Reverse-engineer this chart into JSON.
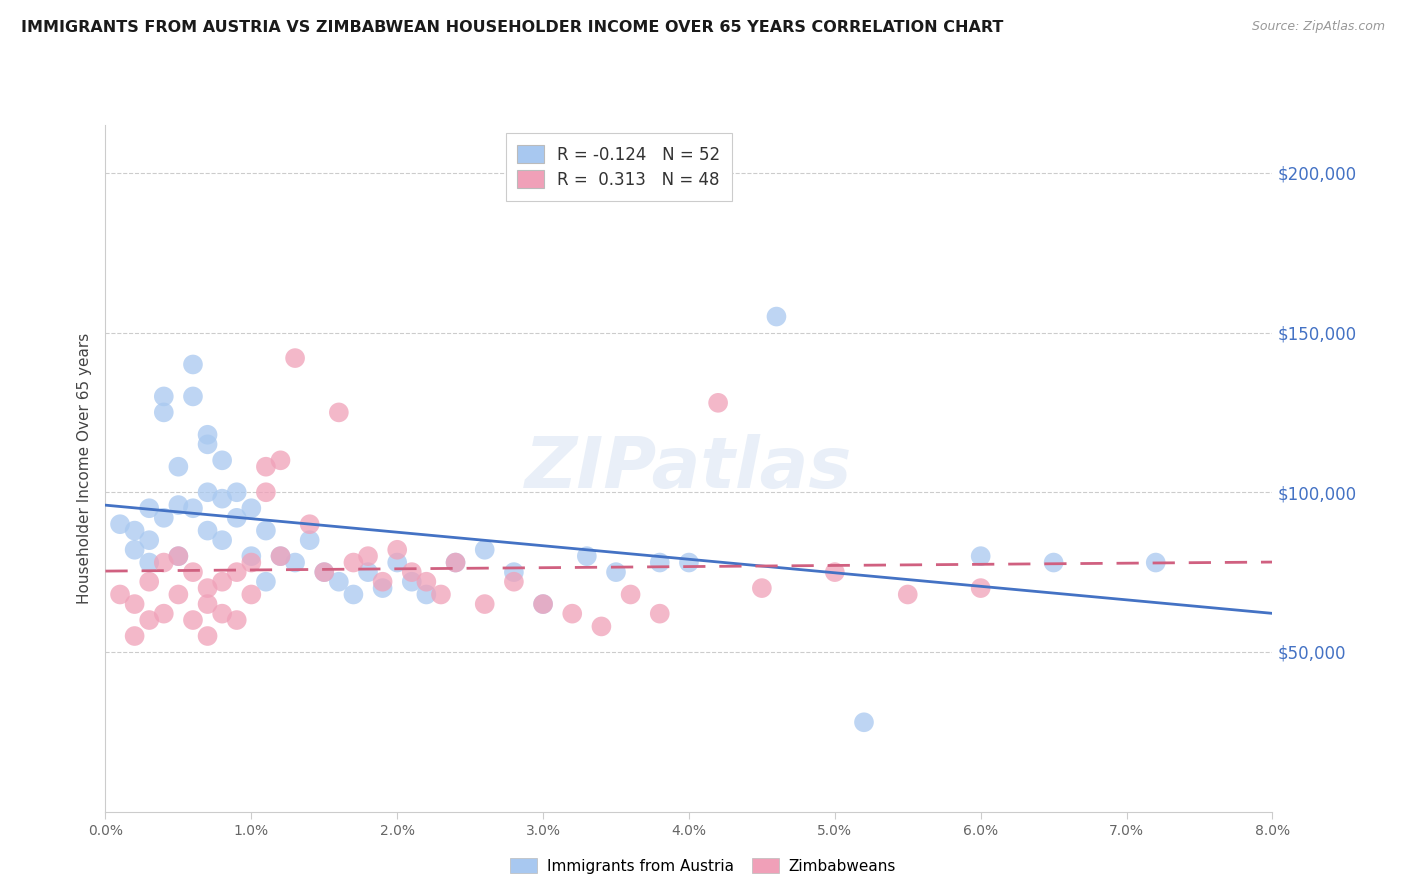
{
  "title": "IMMIGRANTS FROM AUSTRIA VS ZIMBABWEAN HOUSEHOLDER INCOME OVER 65 YEARS CORRELATION CHART",
  "source": "Source: ZipAtlas.com",
  "ylabel": "Householder Income Over 65 years",
  "xlim": [
    0.0,
    0.08
  ],
  "ylim": [
    0,
    215000
  ],
  "yticks": [
    50000,
    100000,
    150000,
    200000
  ],
  "ytick_labels": [
    "$50,000",
    "$100,000",
    "$150,000",
    "$200,000"
  ],
  "legend_r1": "R = -0.124",
  "legend_n1": "N = 52",
  "legend_r2": "R =  0.313",
  "legend_n2": "N = 48",
  "legend_label1": "Immigrants from Austria",
  "legend_label2": "Zimbabweans",
  "blue_color": "#a8c8f0",
  "pink_color": "#f0a0b8",
  "line_blue": "#4472c4",
  "line_pink": "#d06080",
  "title_color": "#1a1a1a",
  "axis_label_color": "#444444",
  "ytick_color": "#4472c4",
  "grid_color": "#cccccc",
  "watermark": "ZIPatlas",
  "austria_x": [
    0.001,
    0.002,
    0.002,
    0.003,
    0.003,
    0.003,
    0.004,
    0.004,
    0.004,
    0.005,
    0.005,
    0.005,
    0.006,
    0.006,
    0.006,
    0.007,
    0.007,
    0.007,
    0.007,
    0.008,
    0.008,
    0.008,
    0.009,
    0.009,
    0.01,
    0.01,
    0.011,
    0.011,
    0.012,
    0.013,
    0.014,
    0.015,
    0.016,
    0.017,
    0.018,
    0.019,
    0.02,
    0.021,
    0.022,
    0.024,
    0.026,
    0.028,
    0.03,
    0.033,
    0.035,
    0.038,
    0.04,
    0.046,
    0.052,
    0.06,
    0.065,
    0.072
  ],
  "austria_y": [
    90000,
    88000,
    82000,
    95000,
    85000,
    78000,
    130000,
    125000,
    92000,
    108000,
    96000,
    80000,
    140000,
    130000,
    95000,
    118000,
    115000,
    100000,
    88000,
    110000,
    98000,
    85000,
    100000,
    92000,
    95000,
    80000,
    88000,
    72000,
    80000,
    78000,
    85000,
    75000,
    72000,
    68000,
    75000,
    70000,
    78000,
    72000,
    68000,
    78000,
    82000,
    75000,
    65000,
    80000,
    75000,
    78000,
    78000,
    155000,
    28000,
    80000,
    78000,
    78000
  ],
  "zimbabwe_x": [
    0.001,
    0.002,
    0.002,
    0.003,
    0.003,
    0.004,
    0.004,
    0.005,
    0.005,
    0.006,
    0.006,
    0.007,
    0.007,
    0.007,
    0.008,
    0.008,
    0.009,
    0.009,
    0.01,
    0.01,
    0.011,
    0.011,
    0.012,
    0.012,
    0.013,
    0.014,
    0.015,
    0.016,
    0.017,
    0.018,
    0.019,
    0.02,
    0.021,
    0.022,
    0.023,
    0.024,
    0.026,
    0.028,
    0.03,
    0.032,
    0.034,
    0.036,
    0.038,
    0.042,
    0.045,
    0.05,
    0.055,
    0.06
  ],
  "zimbabwe_y": [
    68000,
    65000,
    55000,
    72000,
    60000,
    78000,
    62000,
    80000,
    68000,
    75000,
    60000,
    70000,
    65000,
    55000,
    72000,
    62000,
    75000,
    60000,
    78000,
    68000,
    108000,
    100000,
    110000,
    80000,
    142000,
    90000,
    75000,
    125000,
    78000,
    80000,
    72000,
    82000,
    75000,
    72000,
    68000,
    78000,
    65000,
    72000,
    65000,
    62000,
    58000,
    68000,
    62000,
    128000,
    70000,
    75000,
    68000,
    70000
  ]
}
